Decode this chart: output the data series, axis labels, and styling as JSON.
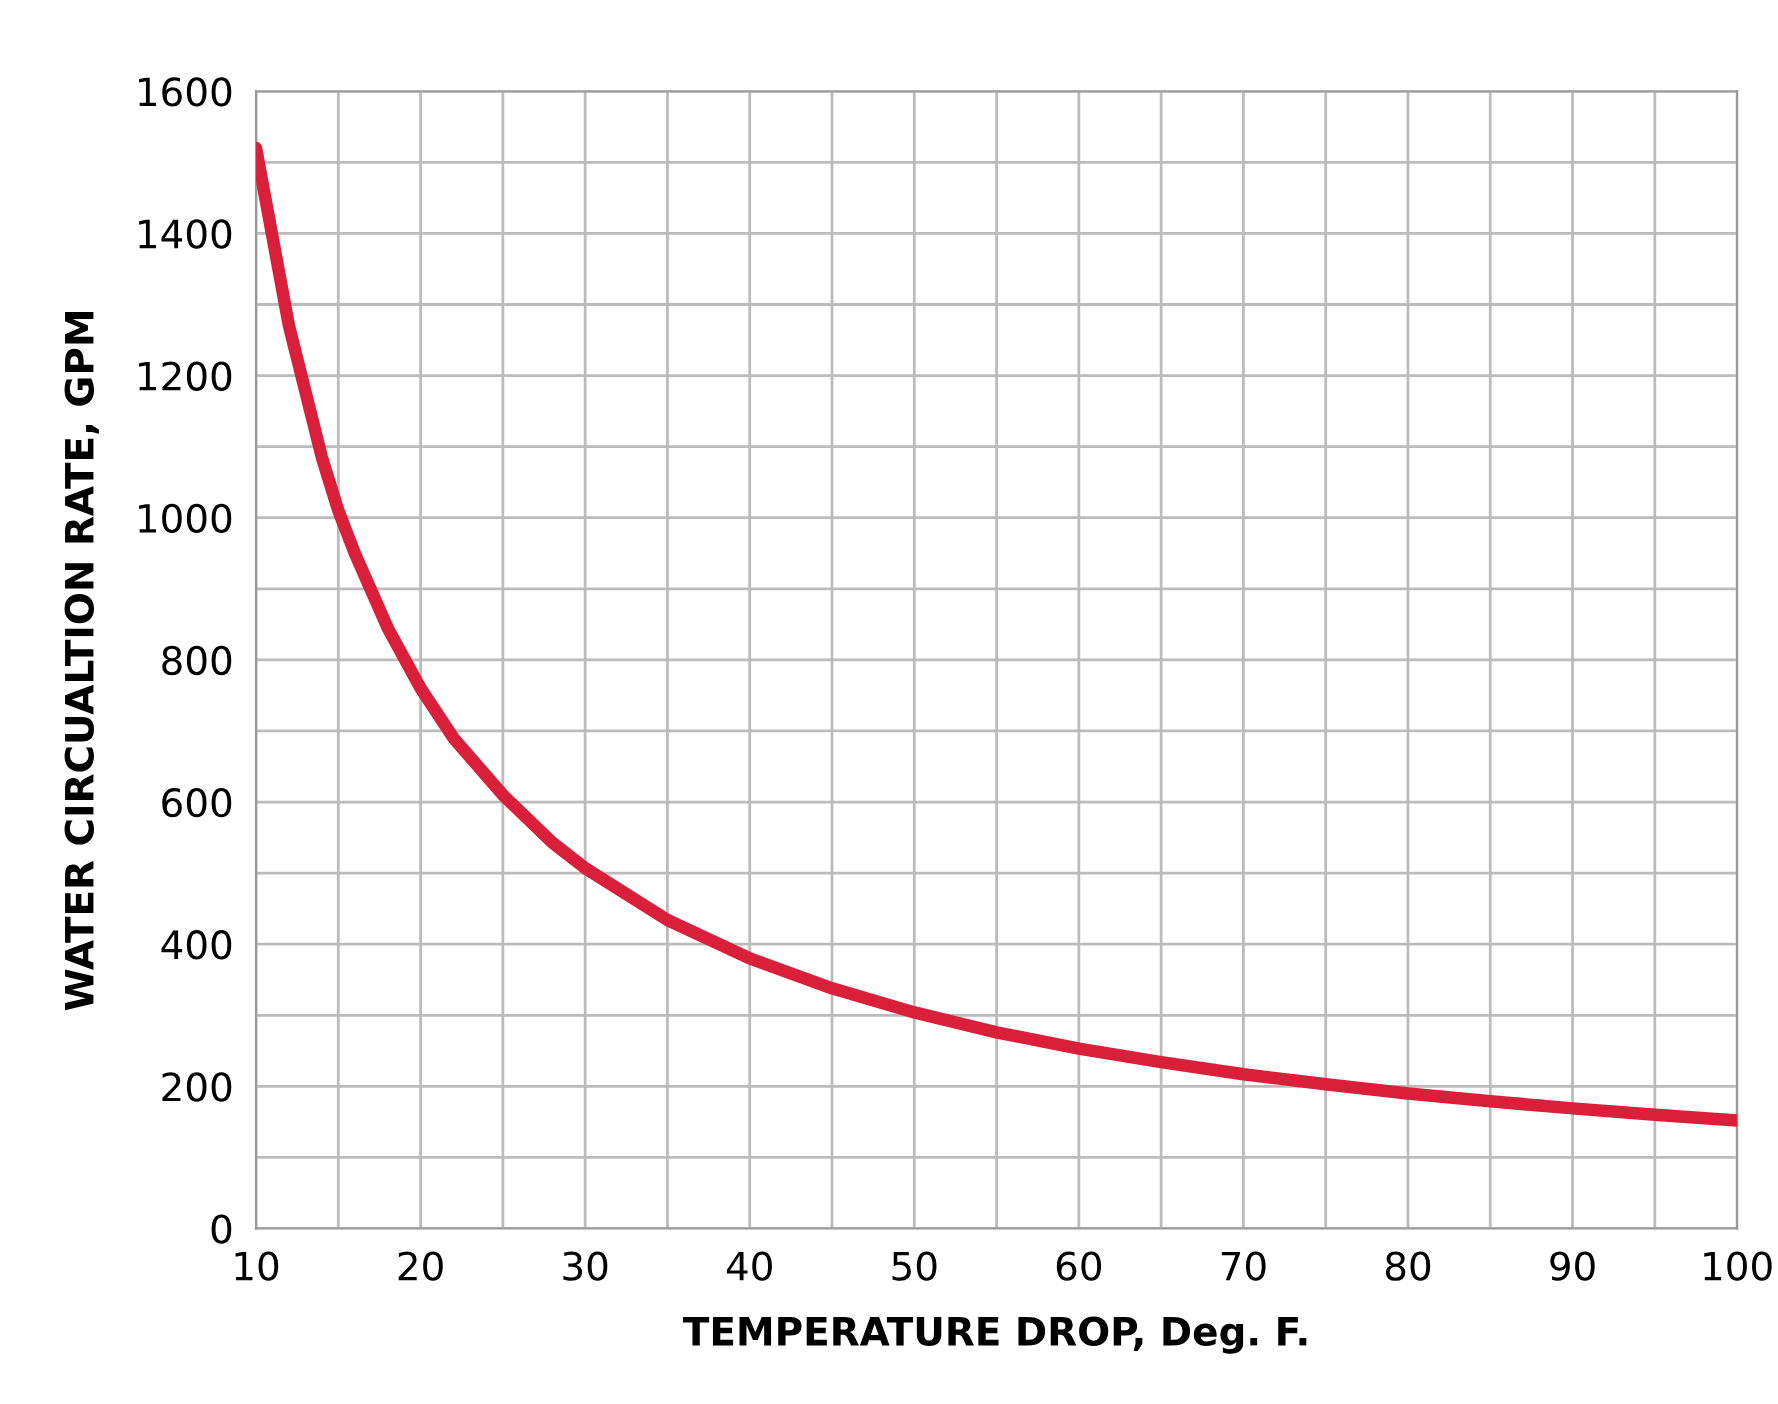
{
  "chart_data": {
    "type": "line",
    "xlabel": "TEMPERATURE DROP, Deg. F.",
    "ylabel": "WATER CIRCUALTION RATE, GPM",
    "series": [
      {
        "color": "#d91f3a",
        "x": [
          10,
          12,
          14,
          15,
          16,
          18,
          20,
          22,
          25,
          28,
          30,
          35,
          40,
          45,
          50,
          55,
          60,
          65,
          70,
          75,
          80,
          85,
          90,
          95,
          100
        ],
        "values": [
          1520,
          1270,
          1085,
          1010,
          950,
          845,
          760,
          690,
          610,
          543,
          507,
          434,
          380,
          338,
          304,
          276,
          253,
          234,
          217,
          203,
          190,
          179,
          169,
          160,
          152
        ]
      }
    ],
    "xlim": [
      10,
      100
    ],
    "ylim": [
      0,
      1600
    ],
    "xticks": [
      10,
      {
        "value": 15,
        "label": null
      },
      20,
      {
        "value": 25,
        "label": null
      },
      30,
      {
        "value": 35,
        "label": null
      },
      40,
      {
        "value": 45,
        "label": null
      },
      50,
      {
        "value": 55,
        "label": null
      },
      60,
      {
        "value": 65,
        "label": null
      },
      70,
      {
        "value": 75,
        "label": null
      },
      80,
      {
        "value": 85,
        "label": null
      },
      90,
      {
        "value": 95,
        "label": null
      },
      100
    ],
    "yticks": [
      0,
      {
        "value": 100,
        "label": null
      },
      200,
      {
        "value": 300,
        "label": null
      },
      400,
      {
        "value": 500,
        "label": null
      },
      600,
      {
        "value": 700,
        "label": null
      },
      800,
      {
        "value": 900,
        "label": null
      },
      1000,
      {
        "value": 1100,
        "label": null
      },
      1200,
      {
        "value": 1300,
        "label": null
      },
      1400,
      {
        "value": 1500,
        "label": null
      },
      1600
    ],
    "grid": true,
    "line_style": "solid"
  }
}
